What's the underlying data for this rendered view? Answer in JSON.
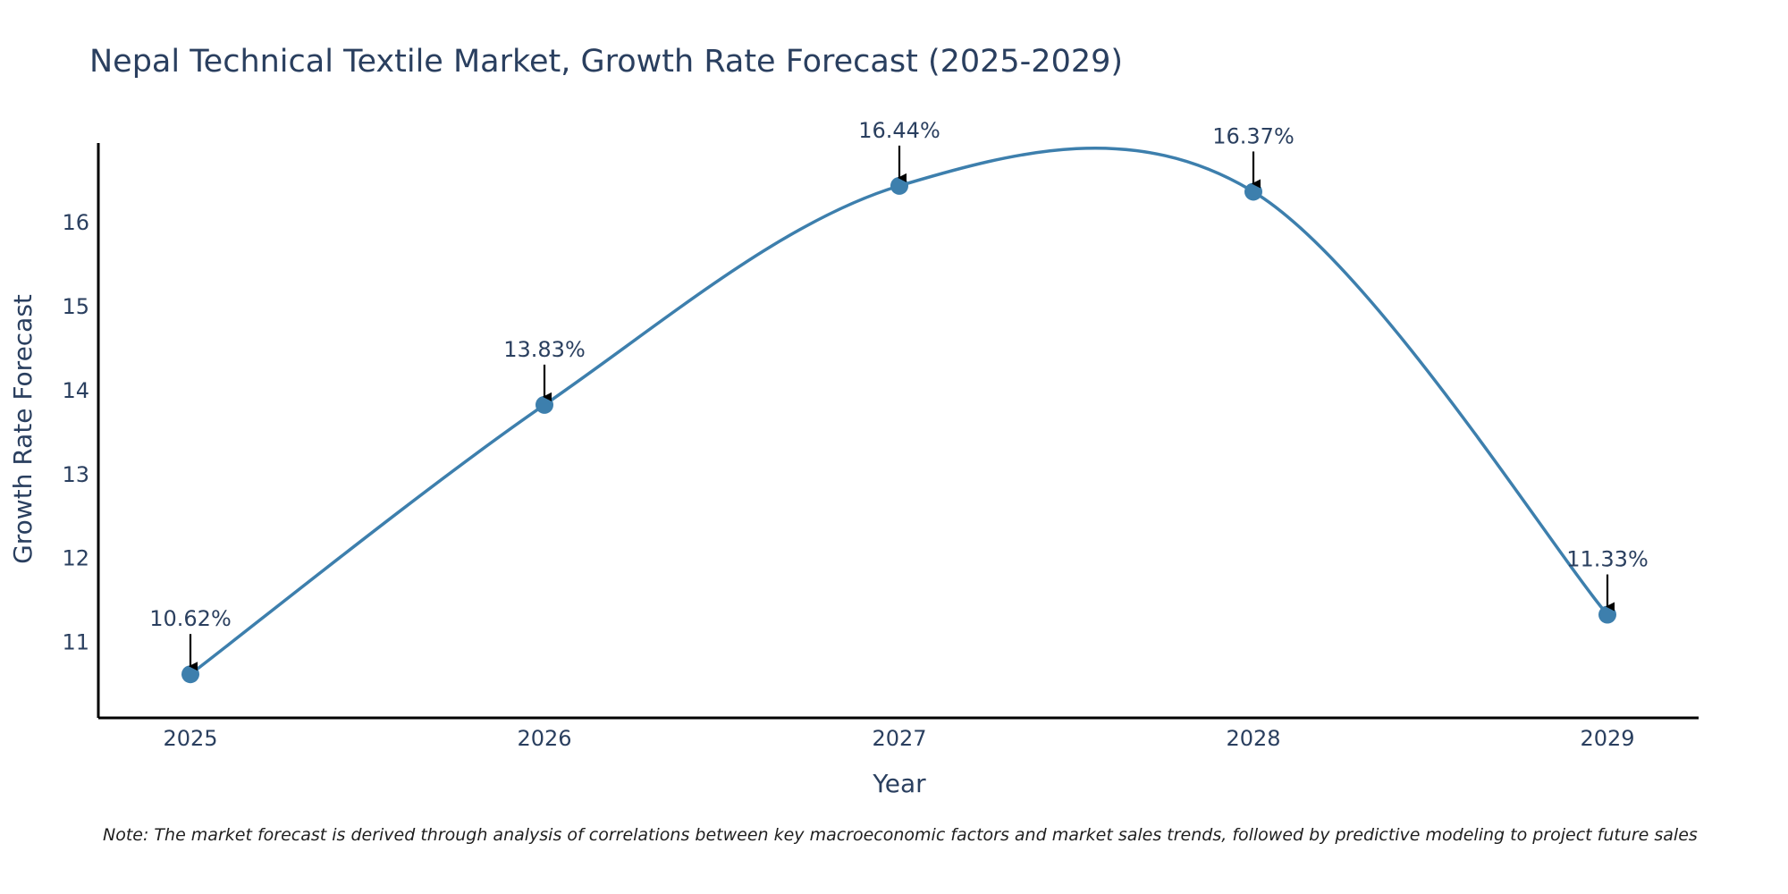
{
  "chart_data": {
    "type": "line",
    "title": "Nepal Technical Textile Market, Growth Rate Forecast (2025-2029)",
    "xlabel": "Year",
    "ylabel": "Growth Rate Forecast",
    "categories": [
      "2025",
      "2026",
      "2027",
      "2028",
      "2029"
    ],
    "values": [
      10.62,
      13.83,
      16.44,
      16.37,
      11.33
    ],
    "data_labels": [
      "10.62%",
      "13.83%",
      "16.44%",
      "16.37%",
      "11.33%"
    ],
    "yticks": [
      11,
      12,
      13,
      14,
      15,
      16
    ],
    "ylim": [
      10.1,
      16.95
    ],
    "grid": false,
    "legend": "none",
    "line_color": "#3d7fad",
    "marker_color": "#3d7fad",
    "arrow_color": "#000000",
    "note": "Note: The market forecast is derived through analysis of correlations between key macroeconomic factors and market sales trends, followed by predictive modeling to project future sales"
  }
}
